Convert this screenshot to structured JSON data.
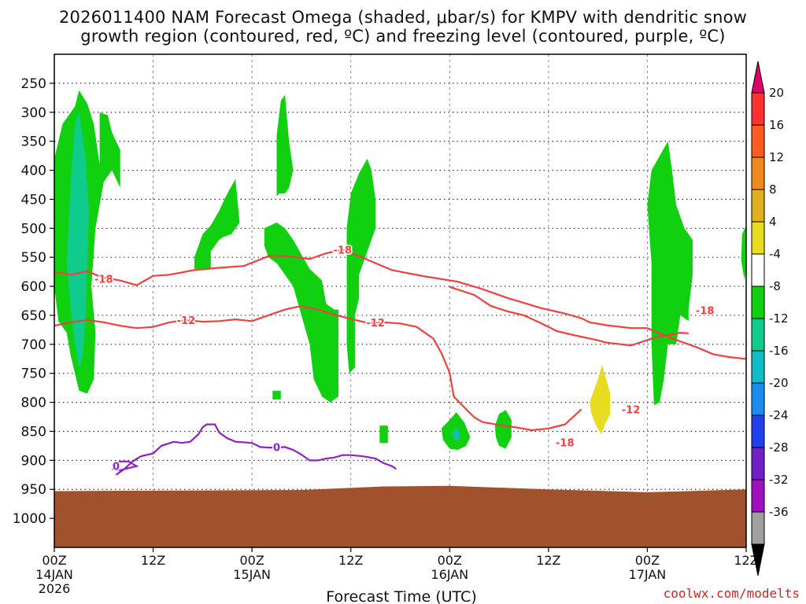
{
  "chart_data": {
    "type": "heatmap",
    "title_line1": "2026011400 NAM Forecast Omega (shaded, μbar/s) for KMPV with dendritic snow",
    "title_line2": "growth region (contoured, red, ºC) and freezing level (contoured, purple, ºC)",
    "xlabel": "Forecast Time (UTC)",
    "credit": "coolwx.com/modelts",
    "x_range_hours": [
      0,
      84
    ],
    "y_range_hpa": [
      200,
      1050
    ],
    "x_ticks": [
      {
        "hour": 0,
        "label": "00Z",
        "sub1": "14JAN",
        "sub2": "2026"
      },
      {
        "hour": 12,
        "label": "12Z",
        "sub1": "",
        "sub2": ""
      },
      {
        "hour": 24,
        "label": "00Z",
        "sub1": "15JAN",
        "sub2": ""
      },
      {
        "hour": 36,
        "label": "12Z",
        "sub1": "",
        "sub2": ""
      },
      {
        "hour": 48,
        "label": "00Z",
        "sub1": "16JAN",
        "sub2": ""
      },
      {
        "hour": 60,
        "label": "12Z",
        "sub1": "",
        "sub2": ""
      },
      {
        "hour": 72,
        "label": "00Z",
        "sub1": "17JAN",
        "sub2": ""
      },
      {
        "hour": 84,
        "label": "12Z",
        "sub1": "",
        "sub2": ""
      }
    ],
    "y_ticks": [
      250,
      300,
      350,
      400,
      450,
      500,
      550,
      600,
      650,
      700,
      750,
      800,
      850,
      900,
      950,
      1000
    ],
    "colorbar": {
      "labels": [
        "20",
        "16",
        "12",
        "8",
        "4",
        "-4",
        "-8",
        "-12",
        "-16",
        "-20",
        "-24",
        "-28",
        "-32",
        "-36"
      ],
      "colors": [
        "#ff3030",
        "#ff5a22",
        "#f08a1e",
        "#e0b020",
        "#e8dc20",
        "#ffffff",
        "#10d010",
        "#10cc8c",
        "#10bcc8",
        "#1a8cf0",
        "#2040f0",
        "#7020c8",
        "#a010c0",
        "#a0a0a0"
      ],
      "top_color": "#e0006a",
      "bottom_color": "#000000"
    },
    "contours": [
      {
        "name": "dendritic-top",
        "value": -18,
        "color": "#f04040",
        "label": "-18",
        "points": [
          [
            0,
            575
          ],
          [
            2,
            580
          ],
          [
            4,
            574
          ],
          [
            5,
            580
          ],
          [
            6,
            585
          ],
          [
            8,
            590
          ],
          [
            10,
            598
          ],
          [
            12,
            582
          ],
          [
            14,
            580
          ],
          [
            17,
            572
          ],
          [
            20,
            568
          ],
          [
            23,
            565
          ],
          [
            26,
            548
          ],
          [
            28,
            548
          ],
          [
            30,
            551
          ],
          [
            31,
            553
          ],
          [
            33,
            543
          ],
          [
            35,
            537
          ],
          [
            37,
            548
          ],
          [
            39,
            560
          ],
          [
            41,
            572
          ],
          [
            45,
            583
          ],
          [
            49,
            592
          ],
          [
            52,
            605
          ],
          [
            55,
            620
          ],
          [
            59,
            637
          ],
          [
            62,
            647
          ],
          [
            64,
            655
          ],
          [
            65,
            662
          ],
          [
            67,
            667
          ],
          [
            70,
            672
          ],
          [
            72,
            672
          ],
          [
            75,
            690
          ],
          [
            78,
            705
          ],
          [
            80,
            717
          ],
          [
            82,
            722
          ],
          [
            84,
            725
          ]
        ],
        "label_pos": [
          [
            6,
            587
          ],
          [
            35,
            537
          ],
          [
            79,
            641
          ]
        ]
      },
      {
        "name": "dendritic-18-lower-loop",
        "value": -18,
        "color": "#f04040",
        "label": "-18",
        "points": [
          [
            48,
            601
          ],
          [
            51,
            615
          ],
          [
            53,
            634
          ],
          [
            55,
            643
          ],
          [
            57,
            650
          ],
          [
            59,
            663
          ],
          [
            61,
            677
          ],
          [
            63,
            684
          ],
          [
            65,
            690
          ],
          [
            66,
            693
          ],
          [
            67,
            697
          ],
          [
            70,
            702
          ],
          [
            73,
            688
          ],
          [
            76,
            680
          ],
          [
            77,
            681
          ]
        ],
        "label_pos": [
          [
            62,
            869
          ]
        ]
      },
      {
        "name": "dendritic-bottom",
        "value": -12,
        "color": "#f04040",
        "label": "-12",
        "points": [
          [
            0,
            668
          ],
          [
            2,
            662
          ],
          [
            4,
            658
          ],
          [
            6,
            662
          ],
          [
            8,
            668
          ],
          [
            10,
            672
          ],
          [
            12,
            670
          ],
          [
            14,
            662
          ],
          [
            16,
            658
          ],
          [
            18,
            661
          ],
          [
            20,
            660
          ],
          [
            22,
            657
          ],
          [
            24,
            660
          ],
          [
            26,
            650
          ],
          [
            28,
            640
          ],
          [
            30,
            634
          ],
          [
            32,
            640
          ],
          [
            34,
            649
          ],
          [
            36,
            656
          ],
          [
            38,
            663
          ],
          [
            40,
            662
          ],
          [
            42,
            664
          ],
          [
            44,
            670
          ],
          [
            46,
            690
          ],
          [
            47,
            715
          ],
          [
            48,
            749
          ],
          [
            48.5,
            790
          ],
          [
            50,
            812
          ],
          [
            51,
            826
          ],
          [
            52,
            834
          ],
          [
            54,
            839
          ],
          [
            56,
            843
          ],
          [
            58,
            848
          ],
          [
            60,
            845
          ],
          [
            62,
            838
          ],
          [
            63,
            825
          ],
          [
            64,
            812
          ]
        ],
        "label_pos": [
          [
            16,
            658
          ],
          [
            39,
            662
          ],
          [
            70,
            812
          ]
        ]
      }
    ]
  }
}
